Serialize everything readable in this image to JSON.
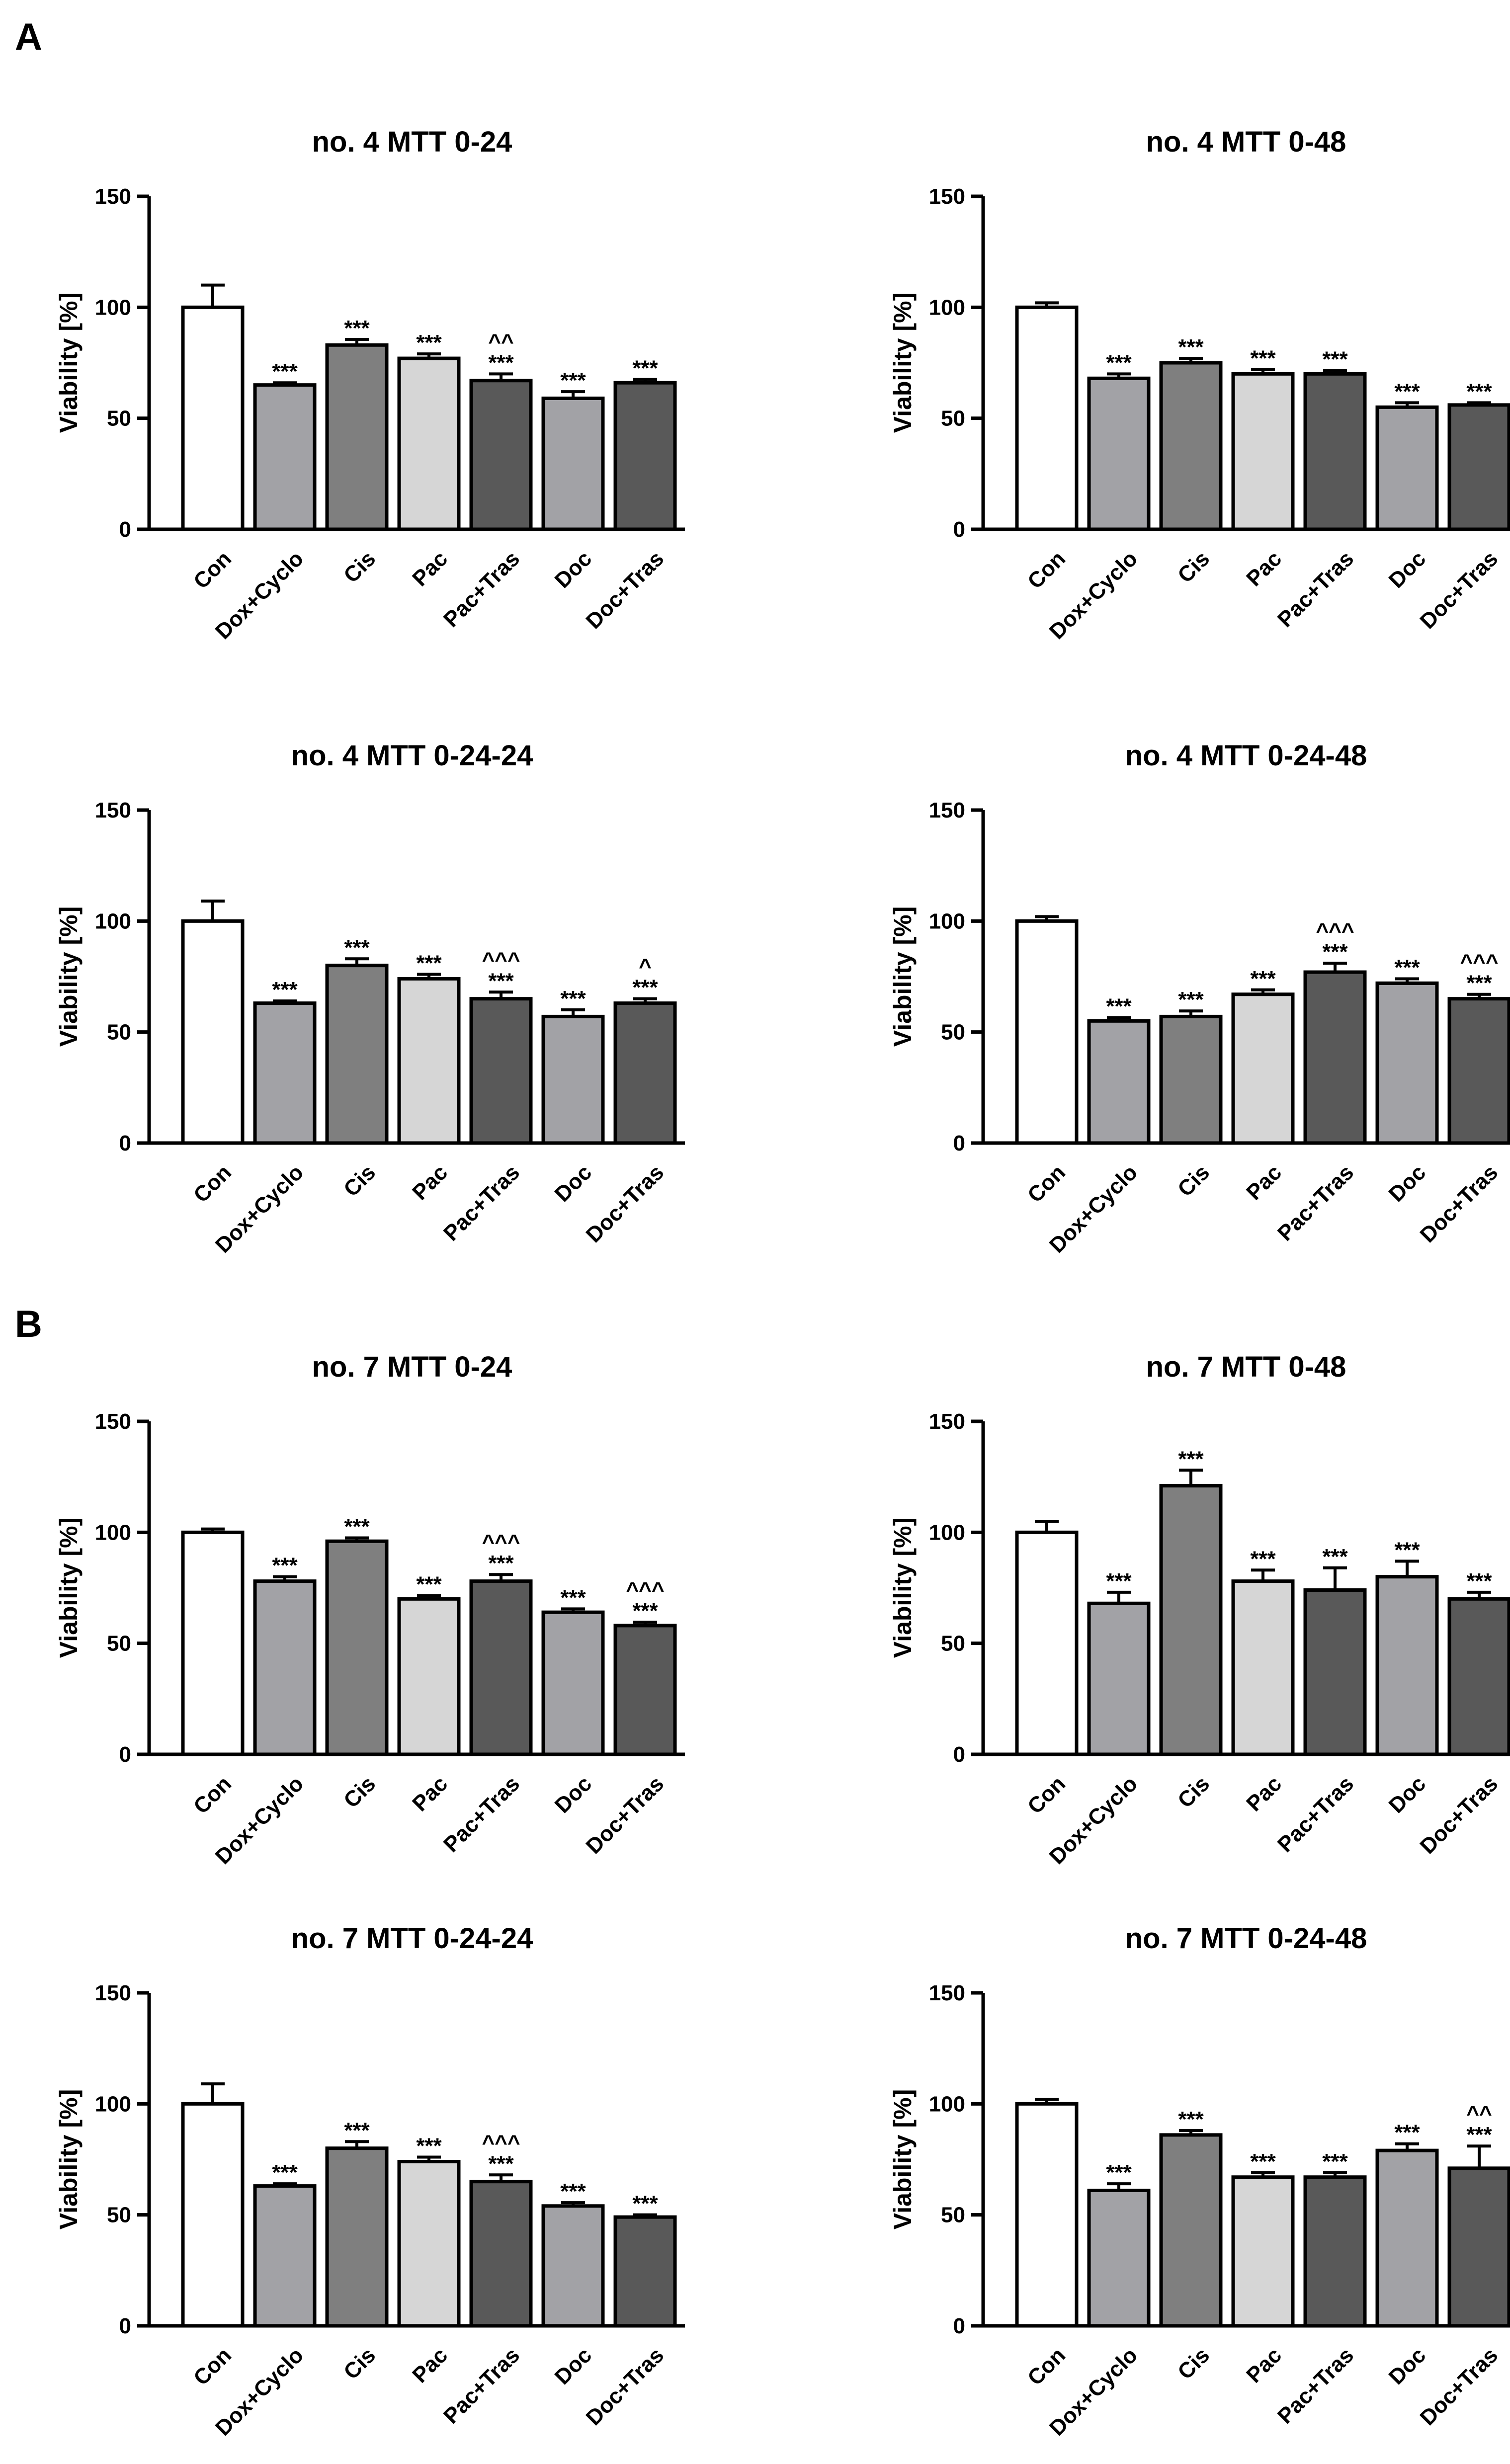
{
  "panels": [
    "A",
    "B"
  ],
  "colors": {
    "Con": "#ffffff",
    "Dox+Cyclo": "#a2a2a6",
    "Cis": "#7f7f7f",
    "Pac": "#d6d6d6",
    "Pac+Tras": "#595959",
    "Doc": "#a2a2a6",
    "Doc+Tras": "#595959"
  },
  "chart_data": [
    {
      "panel": "A",
      "type": "bar",
      "title": "no. 4 MTT 0-24",
      "xlabel": "",
      "ylabel": "Viability [%]",
      "ylim": [
        0,
        150
      ],
      "yticks": [
        0,
        50,
        100,
        150
      ],
      "categories": [
        "Con",
        "Dox+Cyclo",
        "Cis",
        "Pac",
        "Pac+Tras",
        "Doc",
        "Doc+Tras"
      ],
      "values": [
        100,
        65,
        83,
        77,
        67,
        59,
        66
      ],
      "errors": [
        10,
        1,
        2.5,
        2,
        3,
        3,
        1.5
      ],
      "significance": [
        "",
        "***",
        "***",
        "***",
        "***",
        "***",
        "***"
      ],
      "caret": [
        "",
        "",
        "",
        "",
        "^^",
        "",
        ""
      ]
    },
    {
      "panel": "A",
      "type": "bar",
      "title": "no. 4 MTT 0-48",
      "xlabel": "",
      "ylabel": "Viability [%]",
      "ylim": [
        0,
        150
      ],
      "yticks": [
        0,
        50,
        100,
        150
      ],
      "categories": [
        "Con",
        "Dox+Cyclo",
        "Cis",
        "Pac",
        "Pac+Tras",
        "Doc",
        "Doc+Tras"
      ],
      "values": [
        100,
        68,
        75,
        70,
        70,
        55,
        56
      ],
      "errors": [
        2,
        2,
        2,
        2,
        1.5,
        2,
        1
      ],
      "significance": [
        "",
        "***",
        "***",
        "***",
        "***",
        "***",
        "***"
      ],
      "caret": [
        "",
        "",
        "",
        "",
        "",
        "",
        ""
      ]
    },
    {
      "panel": "A",
      "type": "bar",
      "title": "no. 4 MTT 0-24-24",
      "xlabel": "",
      "ylabel": "Viability [%]",
      "ylim": [
        0,
        150
      ],
      "yticks": [
        0,
        50,
        100,
        150
      ],
      "categories": [
        "Con",
        "Dox+Cyclo",
        "Cis",
        "Pac",
        "Pac+Tras",
        "Doc",
        "Doc+Tras"
      ],
      "values": [
        100,
        63,
        80,
        74,
        65,
        57,
        63
      ],
      "errors": [
        9,
        1,
        3,
        2,
        3,
        3,
        2
      ],
      "significance": [
        "",
        "***",
        "***",
        "***",
        "***",
        "***",
        "***"
      ],
      "caret": [
        "",
        "",
        "",
        "",
        "^^^",
        "",
        "^"
      ]
    },
    {
      "panel": "A",
      "type": "bar",
      "title": "no. 4 MTT 0-24-48",
      "xlabel": "",
      "ylabel": "Viability [%]",
      "ylim": [
        0,
        150
      ],
      "yticks": [
        0,
        50,
        100,
        150
      ],
      "categories": [
        "Con",
        "Dox+Cyclo",
        "Cis",
        "Pac",
        "Pac+Tras",
        "Doc",
        "Doc+Tras"
      ],
      "values": [
        100,
        55,
        57,
        67,
        77,
        72,
        65
      ],
      "errors": [
        2,
        1.5,
        2.5,
        2,
        4,
        2,
        2
      ],
      "significance": [
        "",
        "***",
        "***",
        "***",
        "***",
        "***",
        "***"
      ],
      "caret": [
        "",
        "",
        "",
        "",
        "^^^",
        "",
        "^^^"
      ]
    },
    {
      "panel": "B",
      "type": "bar",
      "title": "no. 7 MTT 0-24",
      "xlabel": "",
      "ylabel": "Viability [%]",
      "ylim": [
        0,
        150
      ],
      "yticks": [
        0,
        50,
        100,
        150
      ],
      "categories": [
        "Con",
        "Dox+Cyclo",
        "Cis",
        "Pac",
        "Pac+Tras",
        "Doc",
        "Doc+Tras"
      ],
      "values": [
        100,
        78,
        96,
        70,
        78,
        64,
        58
      ],
      "errors": [
        1.5,
        2,
        1.5,
        1.5,
        3,
        1.5,
        1.5
      ],
      "significance": [
        "",
        "***",
        "***",
        "***",
        "***",
        "***",
        "***"
      ],
      "caret": [
        "",
        "",
        "",
        "",
        "^^^",
        "",
        "^^^"
      ]
    },
    {
      "panel": "B",
      "type": "bar",
      "title": "no. 7 MTT 0-48",
      "xlabel": "",
      "ylabel": "Viability [%]",
      "ylim": [
        0,
        150
      ],
      "yticks": [
        0,
        50,
        100,
        150
      ],
      "categories": [
        "Con",
        "Dox+Cyclo",
        "Cis",
        "Pac",
        "Pac+Tras",
        "Doc",
        "Doc+Tras"
      ],
      "values": [
        100,
        68,
        121,
        78,
        74,
        80,
        70
      ],
      "errors": [
        5,
        5,
        7,
        5,
        10,
        7,
        3
      ],
      "significance": [
        "",
        "***",
        "***",
        "***",
        "***",
        "***",
        "***"
      ],
      "caret": [
        "",
        "",
        "",
        "",
        "",
        "",
        ""
      ]
    },
    {
      "panel": "B",
      "type": "bar",
      "title": "no. 7 MTT 0-24-24",
      "xlabel": "",
      "ylabel": "Viability [%]",
      "ylim": [
        0,
        150
      ],
      "yticks": [
        0,
        50,
        100,
        150
      ],
      "categories": [
        "Con",
        "Dox+Cyclo",
        "Cis",
        "Pac",
        "Pac+Tras",
        "Doc",
        "Doc+Tras"
      ],
      "values": [
        100,
        63,
        80,
        74,
        65,
        54,
        49
      ],
      "errors": [
        9,
        1,
        3,
        2,
        3,
        1.5,
        1
      ],
      "significance": [
        "",
        "***",
        "***",
        "***",
        "***",
        "***",
        "***"
      ],
      "caret": [
        "",
        "",
        "",
        "",
        "^^^",
        "",
        ""
      ]
    },
    {
      "panel": "B",
      "type": "bar",
      "title": "no. 7 MTT 0-24-48",
      "xlabel": "",
      "ylabel": "Viability [%]",
      "ylim": [
        0,
        150
      ],
      "yticks": [
        0,
        50,
        100,
        150
      ],
      "categories": [
        "Con",
        "Dox+Cyclo",
        "Cis",
        "Pac",
        "Pac+Tras",
        "Doc",
        "Doc+Tras"
      ],
      "values": [
        100,
        61,
        86,
        67,
        67,
        79,
        71
      ],
      "errors": [
        2,
        3,
        2,
        2,
        2,
        3,
        10
      ],
      "significance": [
        "",
        "***",
        "***",
        "***",
        "***",
        "***",
        "***"
      ],
      "caret": [
        "",
        "",
        "",
        "",
        "",
        "",
        "^^"
      ]
    }
  ]
}
